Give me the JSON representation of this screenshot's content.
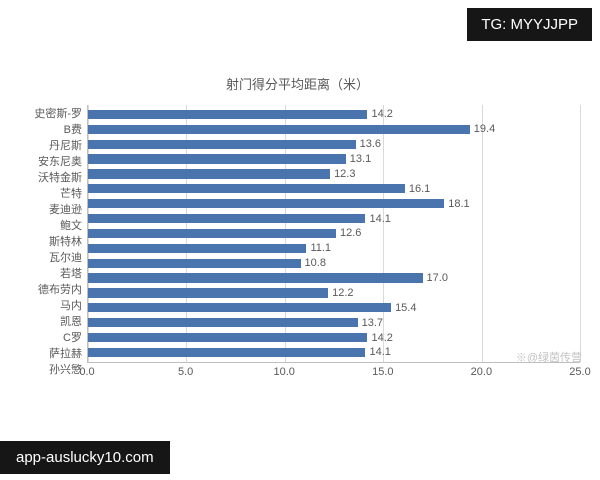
{
  "header": {
    "tg_badge": "TG: MYYJJPP"
  },
  "footer": {
    "site_badge": "app-auslucky10.com"
  },
  "watermark": "※@绿茵传营",
  "chart_data": {
    "type": "bar",
    "orientation": "horizontal",
    "title": "射门得分平均距离（米）",
    "categories": [
      "史密斯-罗",
      "B费",
      "丹尼斯",
      "安东尼奥",
      "沃特金斯",
      "芒特",
      "麦迪逊",
      "鲍文",
      "斯特林",
      "瓦尔迪",
      "若塔",
      "德布劳内",
      "马内",
      "凯恩",
      "C罗",
      "萨拉赫",
      "孙兴慜"
    ],
    "values": [
      14.2,
      19.4,
      13.6,
      13.1,
      12.3,
      16.1,
      18.1,
      14.1,
      12.6,
      11.1,
      10.8,
      17.0,
      12.2,
      15.4,
      13.7,
      14.2,
      14.1
    ],
    "xlim": [
      0,
      25
    ],
    "xticks": [
      0,
      5,
      10,
      15,
      20,
      25
    ],
    "xtick_labels": [
      "0.0",
      "5.0",
      "10.0",
      "15.0",
      "20.0",
      "25.0"
    ],
    "bar_color": "#4a74ae",
    "grid": true,
    "legend": "none"
  }
}
